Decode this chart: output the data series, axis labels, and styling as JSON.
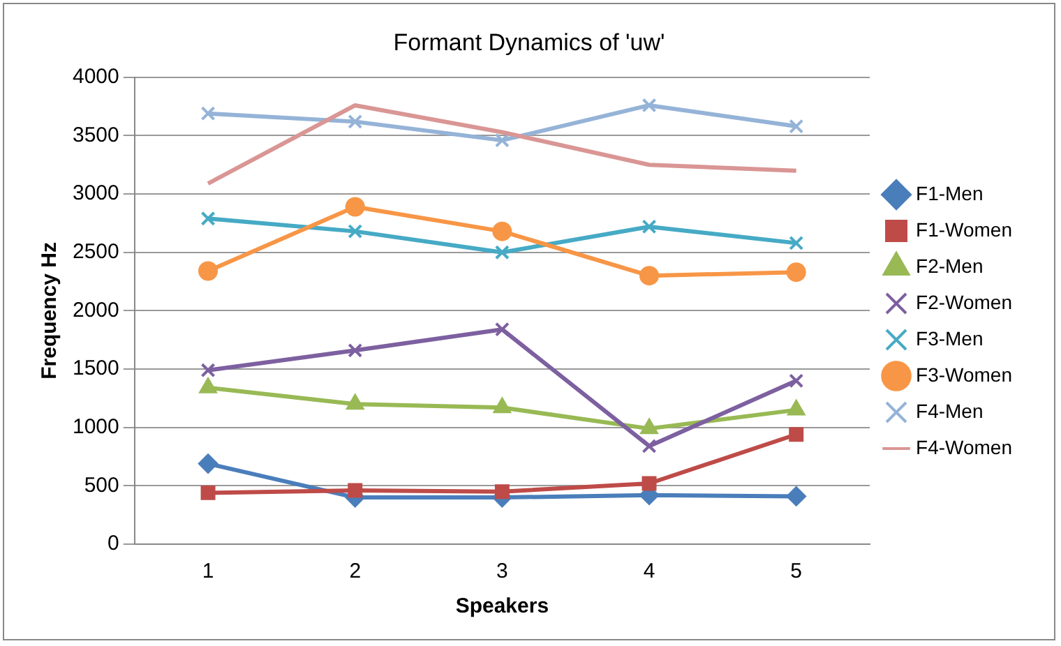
{
  "chart_data": {
    "type": "line",
    "title": "Formant Dynamics of 'uw'",
    "xlabel": "Speakers",
    "ylabel": "Frequency Hz",
    "categories": [
      "1",
      "2",
      "3",
      "4",
      "5"
    ],
    "ylim": [
      0,
      4000
    ],
    "yticks": [
      0,
      500,
      1000,
      1500,
      2000,
      2500,
      3000,
      3500,
      4000
    ],
    "grid": "y",
    "legend": "right",
    "line_style": "solid",
    "series": [
      {
        "name": "F1-Men",
        "color": "#4a7ebb",
        "marker": "diamond",
        "values": [
          690,
          400,
          400,
          420,
          410
        ]
      },
      {
        "name": "F1-Women",
        "color": "#be4b48",
        "marker": "square",
        "values": [
          440,
          460,
          450,
          520,
          940
        ]
      },
      {
        "name": "F2-Men",
        "color": "#98b954",
        "marker": "triangle",
        "values": [
          1340,
          1200,
          1170,
          990,
          1150
        ]
      },
      {
        "name": "F2-Women",
        "color": "#7d60a0",
        "marker": "cross",
        "values": [
          1490,
          1660,
          1840,
          840,
          1400
        ]
      },
      {
        "name": "F3-Men",
        "color": "#46aac5",
        "marker": "cross",
        "values": [
          2790,
          2680,
          2500,
          2720,
          2580
        ]
      },
      {
        "name": "F3-Women",
        "color": "#f79646",
        "marker": "circle",
        "values": [
          2340,
          2890,
          2680,
          2300,
          2330
        ]
      },
      {
        "name": "F4-Men",
        "color": "#95b3d7",
        "marker": "cross",
        "values": [
          3690,
          3620,
          3460,
          3760,
          3580
        ]
      },
      {
        "name": "F4-Women",
        "color": "#d99694",
        "marker": "none",
        "values": [
          3090,
          3760,
          3530,
          3250,
          3200
        ]
      }
    ]
  }
}
